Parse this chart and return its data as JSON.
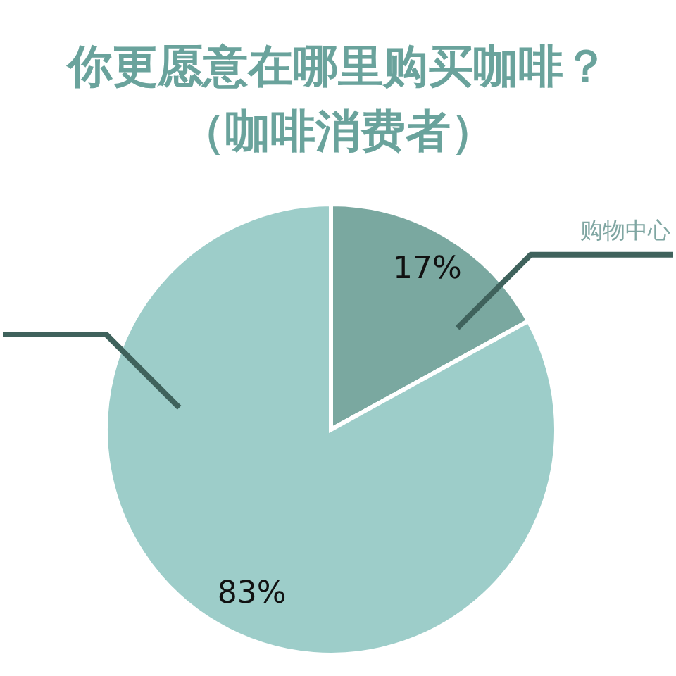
{
  "chart_data": {
    "type": "pie",
    "title": "你更愿意在哪里购买咖啡？",
    "subtitle": "（咖啡消费者）",
    "categories": [
      "购物中心",
      null
    ],
    "values": [
      17,
      83
    ],
    "colors": [
      "#7aa8a0",
      "#9dcdc9"
    ],
    "value_labels": [
      "17%",
      "83%"
    ]
  }
}
